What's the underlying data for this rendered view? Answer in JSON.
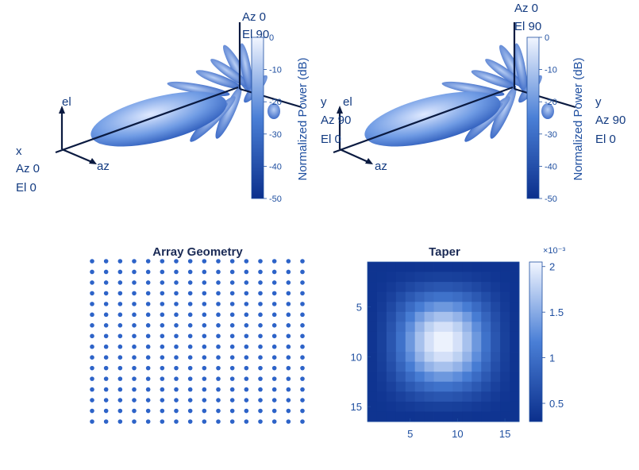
{
  "colors": {
    "dark": "#0b2f8c",
    "mid": "#3f74cf",
    "light": "#f0f4ff",
    "text": "#1f4fa0",
    "dot": "#2d63c8"
  },
  "chart_data": [
    {
      "type": "3d-pattern",
      "panel": "left",
      "colorbar": {
        "label": "Normalized Power (dB)",
        "ticks": [
          0,
          -10,
          -20,
          -30,
          -40,
          -50
        ],
        "range": [
          -50,
          0
        ]
      },
      "axes_labels": {
        "x": [
          "x",
          "Az 0",
          "El 0"
        ],
        "y": [
          "y",
          "Az 90",
          "El 0"
        ],
        "z": [
          "Az 0",
          "El 90"
        ],
        "el": "el",
        "az": "az"
      }
    },
    {
      "type": "3d-pattern",
      "panel": "right",
      "colorbar": {
        "label": "Normalized Power (dB)",
        "ticks": [
          0,
          -10,
          -20,
          -30,
          -40,
          -50
        ],
        "range": [
          -50,
          0
        ]
      },
      "axes_labels": {
        "y": [
          "y",
          "Az 90",
          "El 0"
        ],
        "z": [
          "Az 0",
          "El 90"
        ],
        "el": "el",
        "az": "az"
      }
    },
    {
      "type": "scatter",
      "title": "Array Geometry",
      "rows": 16,
      "cols": 16
    },
    {
      "type": "heatmap",
      "title": "Taper",
      "rows": 16,
      "cols": 16,
      "xticks": [
        5,
        10,
        15
      ],
      "yticks": [
        5,
        10,
        15
      ],
      "colorbar": {
        "ticks": [
          "0.5",
          "1",
          "1.5",
          "2"
        ],
        "multiplier": "×10⁻³",
        "range": [
          0.3,
          2.05
        ]
      }
    }
  ]
}
